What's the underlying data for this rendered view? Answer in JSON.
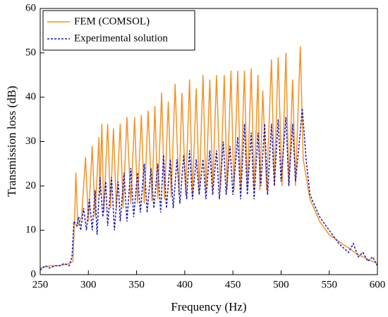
{
  "chart_data": {
    "type": "line",
    "xlabel": "Frequency (Hz)",
    "ylabel": "Transmission loss (dB)",
    "xlim": [
      250,
      600
    ],
    "xticks": [
      250,
      300,
      350,
      400,
      450,
      500,
      550,
      600
    ],
    "ylim": [
      0,
      60
    ],
    "yticks": [
      0,
      10,
      20,
      30,
      40,
      50,
      60
    ],
    "legend": "upper left",
    "series": [
      {
        "name": "FEM (COMSOL)",
        "color": "#f39227",
        "dash": false,
        "x": [
          250,
          260,
          270,
          280,
          284,
          286,
          287,
          289,
          293,
          297,
          300,
          304,
          307,
          311,
          312,
          314,
          316,
          320,
          323,
          326,
          329,
          333,
          336,
          340,
          344,
          348,
          351,
          355,
          358,
          362,
          366,
          369,
          372,
          376,
          379,
          383,
          386,
          390,
          394,
          397,
          401,
          405,
          408,
          412,
          415,
          419,
          422,
          426,
          429,
          433,
          437,
          441,
          444,
          448,
          451,
          455,
          458,
          462,
          465,
          469,
          472,
          476,
          478,
          481,
          485,
          490,
          493,
          497,
          501,
          505,
          508,
          512,
          515,
          520,
          523,
          530,
          540,
          550,
          560,
          570,
          580,
          590,
          600
        ],
        "values": [
          1.5,
          2,
          2,
          2.5,
          3,
          15,
          23,
          11,
          13,
          26.5,
          12,
          29,
          13,
          31,
          18,
          34,
          14,
          34,
          15,
          33,
          15,
          34,
          15,
          35.5,
          16,
          35.5,
          16,
          36,
          16,
          37,
          16.5,
          38,
          17,
          41,
          17,
          39,
          17.5,
          43,
          18,
          41,
          18,
          44,
          18,
          42,
          18.5,
          45,
          18.5,
          44,
          19,
          45,
          19,
          45,
          19,
          46,
          19,
          46,
          19,
          46,
          19,
          46.5,
          19,
          45,
          19,
          41.5,
          19,
          48.5,
          20,
          49,
          20,
          50,
          20,
          44,
          20,
          51.5,
          26,
          17,
          12,
          9,
          7.5,
          6,
          4.5,
          3.5,
          2.5
        ]
      },
      {
        "name": "Experimental solution",
        "color": "#1a1ab8",
        "dash": true,
        "x": [
          250,
          255,
          260,
          265,
          270,
          275,
          280,
          283,
          285,
          288,
          290,
          292,
          295,
          298,
          301,
          304,
          307,
          309,
          312,
          315,
          318,
          320,
          324,
          327,
          331,
          333,
          337,
          340,
          344,
          347,
          351,
          354,
          358,
          361,
          365,
          368,
          372,
          375,
          378,
          381,
          385,
          388,
          392,
          395,
          399,
          402,
          405,
          408,
          412,
          415,
          419,
          422,
          426,
          429,
          433,
          436,
          440,
          443,
          447,
          450,
          455,
          458,
          462,
          465,
          469,
          472,
          476,
          479,
          483,
          486,
          490,
          493,
          497,
          500,
          505,
          508,
          512,
          515,
          519,
          522,
          526,
          530,
          540,
          550,
          560,
          570,
          575,
          580,
          585,
          590,
          595,
          600
        ],
        "values": [
          1,
          2,
          1.5,
          2,
          2,
          2.5,
          2,
          4,
          12,
          11,
          13,
          10,
          15,
          10,
          17,
          10,
          19,
          9,
          22,
          13,
          21,
          11,
          22,
          10,
          21,
          12,
          23,
          12,
          24,
          13,
          23,
          14,
          25,
          14,
          24,
          15,
          25,
          14,
          27,
          15,
          26,
          15,
          26,
          16,
          27,
          17,
          28,
          17,
          26,
          18,
          26,
          17,
          28,
          18,
          28,
          17,
          30,
          18,
          29,
          18,
          31,
          17,
          34,
          18,
          32,
          17,
          32,
          20,
          34,
          18,
          34,
          20,
          35,
          21,
          35.5,
          20,
          34,
          21,
          30,
          37.5,
          26,
          18,
          13,
          10,
          7,
          5,
          7,
          4,
          5,
          3,
          4,
          2
        ]
      }
    ]
  }
}
